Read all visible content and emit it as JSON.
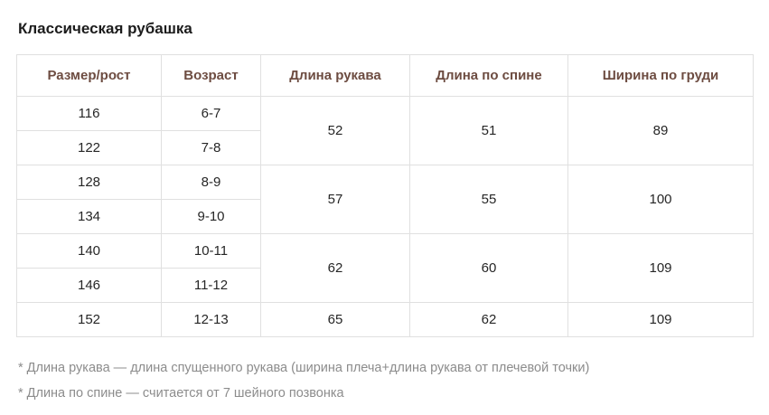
{
  "page": {
    "title": "Классическая рубашка",
    "footnotes": [
      "* Длина рукава — длина спущенного рукава (ширина плеча+длина рукава от плечевой точки)",
      "* Длина по спине — считается от 7 шейного позвонка"
    ]
  },
  "colors": {
    "header_text": "#6d4c41",
    "body_text": "#262626",
    "border": "#e0e0e0",
    "footnote_text": "#8c8c8c",
    "background": "#ffffff"
  },
  "chart_data": {
    "type": "table",
    "title": "Классическая рубашка",
    "columns": [
      "Размер/рост",
      "Возраст",
      "Длина рукава",
      "Длина по спине",
      "Ширина по груди"
    ],
    "rows": [
      [
        "116",
        "6-7",
        "52",
        "51",
        "89"
      ],
      [
        "122",
        "7-8",
        "52",
        "51",
        "89"
      ],
      [
        "128",
        "8-9",
        "57",
        "55",
        "100"
      ],
      [
        "134",
        "9-10",
        "57",
        "55",
        "100"
      ],
      [
        "140",
        "10-11",
        "62",
        "60",
        "109"
      ],
      [
        "146",
        "11-12",
        "62",
        "60",
        "109"
      ],
      [
        "152",
        "12-13",
        "65",
        "62",
        "109"
      ]
    ],
    "merged_row_groups": [
      [
        0,
        1
      ],
      [
        2,
        3
      ],
      [
        4,
        5
      ],
      [
        6
      ]
    ],
    "notes": [
      "* Длина рукава — длина спущенного рукава (ширина плеча+длина рукава от плечевой точки)",
      "* Длина по спине — считается от 7 шейного позвонка"
    ]
  }
}
